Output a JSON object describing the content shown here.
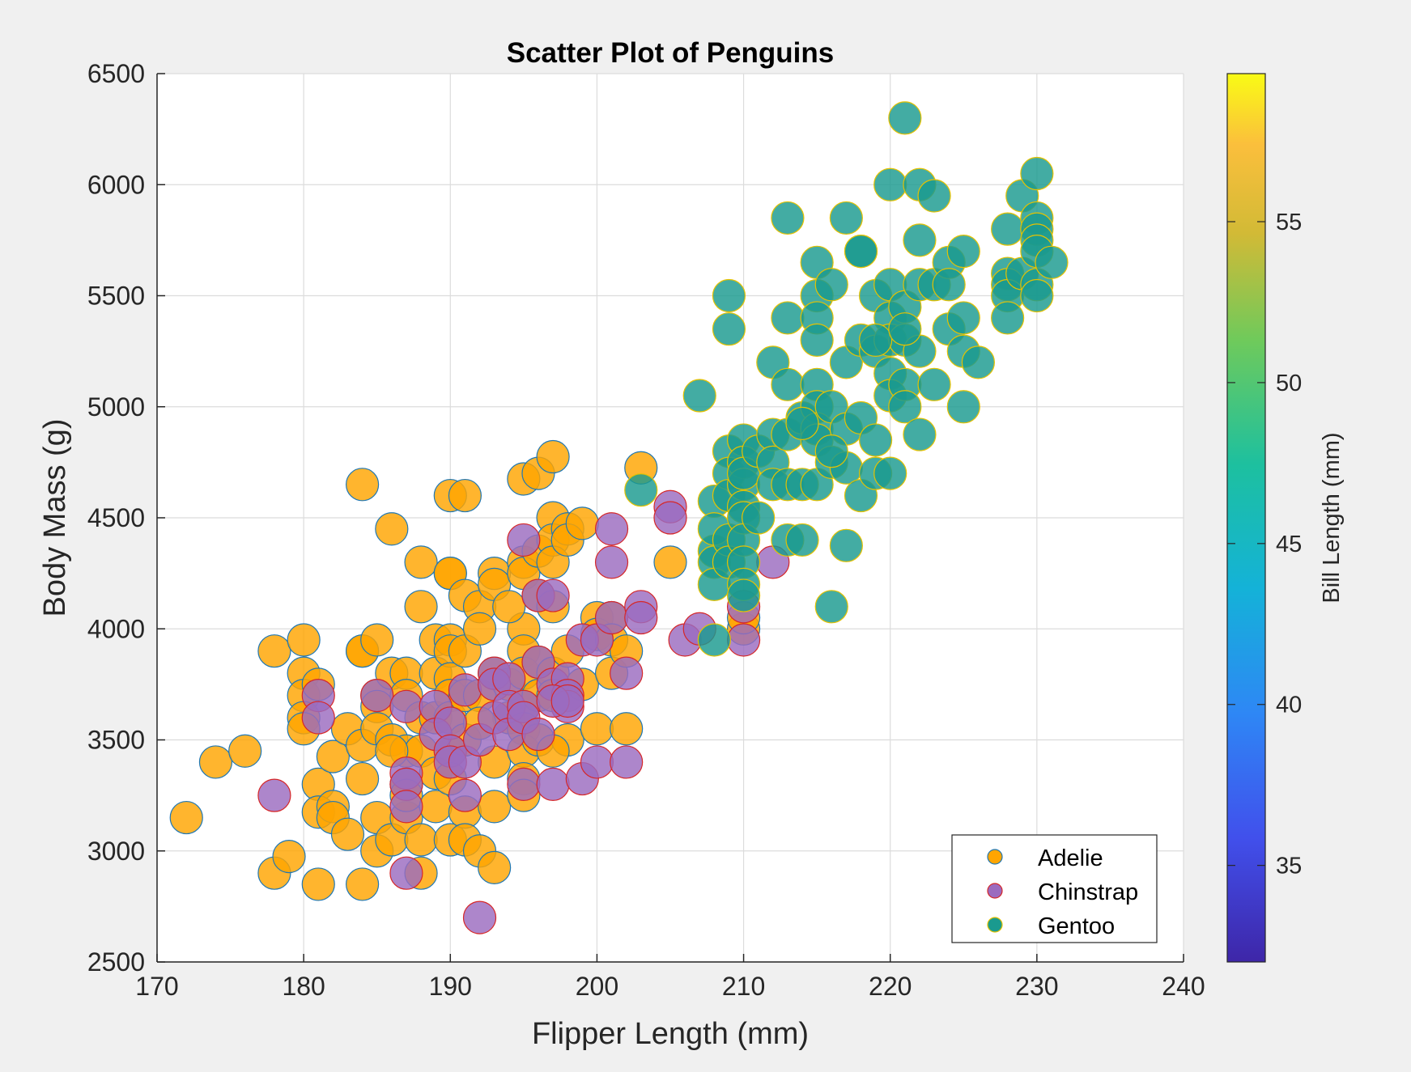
{
  "chart_data": {
    "type": "scatter",
    "title": "Scatter Plot of Penguins",
    "xlabel": "Flipper Length (mm)",
    "ylabel": "Body Mass (g)",
    "xlim": [
      170,
      240
    ],
    "ylim": [
      2500,
      6500
    ],
    "xticks": [
      170,
      180,
      190,
      200,
      210,
      220,
      230,
      240
    ],
    "yticks": [
      2500,
      3000,
      3500,
      4000,
      4500,
      5000,
      5500,
      6000,
      6500
    ],
    "grid": true,
    "legend_position": "bottom-right",
    "colorbar": {
      "label": "Bill Length (mm)",
      "range": [
        32,
        59.6
      ],
      "ticks": [
        35,
        40,
        45,
        50,
        55
      ],
      "colormap": "parula"
    },
    "series": [
      {
        "name": "Adelie",
        "fill": "#ffa500",
        "edge": "#1f77b4",
        "points": [
          [
            172,
            3150
          ],
          [
            174,
            3400
          ],
          [
            176,
            3450
          ],
          [
            178,
            3900
          ],
          [
            178,
            2900
          ],
          [
            179,
            2975
          ],
          [
            180,
            3950
          ],
          [
            180,
            3800
          ],
          [
            180,
            3700
          ],
          [
            180,
            3600
          ],
          [
            180,
            3550
          ],
          [
            181,
            3300
          ],
          [
            181,
            3175
          ],
          [
            181,
            3750
          ],
          [
            181,
            2850
          ],
          [
            182,
            3200
          ],
          [
            182,
            3425
          ],
          [
            182,
            3150
          ],
          [
            183,
            3075
          ],
          [
            183,
            3550
          ],
          [
            184,
            4650
          ],
          [
            184,
            3900
          ],
          [
            184,
            3900
          ],
          [
            184,
            3475
          ],
          [
            184,
            3325
          ],
          [
            184,
            2850
          ],
          [
            185,
            3700
          ],
          [
            185,
            3650
          ],
          [
            185,
            3950
          ],
          [
            185,
            3550
          ],
          [
            185,
            3150
          ],
          [
            185,
            3000
          ],
          [
            186,
            4450
          ],
          [
            186,
            3800
          ],
          [
            186,
            3500
          ],
          [
            186,
            3050
          ],
          [
            187,
            3800
          ],
          [
            187,
            3700
          ],
          [
            187,
            3450
          ],
          [
            187,
            3300
          ],
          [
            187,
            3150
          ],
          [
            187,
            3250
          ],
          [
            188,
            4300
          ],
          [
            188,
            4100
          ],
          [
            188,
            3600
          ],
          [
            188,
            3450
          ],
          [
            188,
            3050
          ],
          [
            188,
            2900
          ],
          [
            189,
            3950
          ],
          [
            189,
            3800
          ],
          [
            189,
            3600
          ],
          [
            189,
            3350
          ],
          [
            189,
            3200
          ],
          [
            190,
            4600
          ],
          [
            190,
            4250
          ],
          [
            190,
            4250
          ],
          [
            190,
            3950
          ],
          [
            190,
            3900
          ],
          [
            190,
            3775
          ],
          [
            190,
            3700
          ],
          [
            190,
            3600
          ],
          [
            190,
            3450
          ],
          [
            190,
            3325
          ],
          [
            190,
            3050
          ],
          [
            191,
            4600
          ],
          [
            191,
            4150
          ],
          [
            191,
            3900
          ],
          [
            191,
            3700
          ],
          [
            191,
            3500
          ],
          [
            191,
            3175
          ],
          [
            191,
            3050
          ],
          [
            192,
            4100
          ],
          [
            192,
            4000
          ],
          [
            192,
            3700
          ],
          [
            192,
            3000
          ],
          [
            193,
            4250
          ],
          [
            193,
            4200
          ],
          [
            193,
            3800
          ],
          [
            193,
            3400
          ],
          [
            193,
            3200
          ],
          [
            193,
            2925
          ],
          [
            194,
            3750
          ],
          [
            194,
            3600
          ],
          [
            195,
            4675
          ],
          [
            195,
            4300
          ],
          [
            195,
            4250
          ],
          [
            195,
            4000
          ],
          [
            195,
            3900
          ],
          [
            195,
            3800
          ],
          [
            195,
            3650
          ],
          [
            195,
            3550
          ],
          [
            195,
            3450
          ],
          [
            195,
            3325
          ],
          [
            195,
            3250
          ],
          [
            196,
            4700
          ],
          [
            196,
            4350
          ],
          [
            196,
            4150
          ],
          [
            196,
            3850
          ],
          [
            196,
            3700
          ],
          [
            196,
            3500
          ],
          [
            197,
            4775
          ],
          [
            197,
            4500
          ],
          [
            197,
            4400
          ],
          [
            197,
            4300
          ],
          [
            197,
            4100
          ],
          [
            197,
            3800
          ],
          [
            197,
            3700
          ],
          [
            198,
            4450
          ],
          [
            198,
            4400
          ],
          [
            198,
            3900
          ],
          [
            198,
            3500
          ],
          [
            199,
            4475
          ],
          [
            199,
            3750
          ],
          [
            200,
            4050
          ],
          [
            200,
            3975
          ],
          [
            200,
            3550
          ],
          [
            201,
            4050
          ],
          [
            201,
            3950
          ],
          [
            201,
            3800
          ],
          [
            202,
            3900
          ],
          [
            202,
            3550
          ],
          [
            203,
            4725
          ],
          [
            205,
            4300
          ],
          [
            210,
            4000
          ],
          [
            210,
            4050
          ],
          [
            186,
            3450
          ],
          [
            192,
            3575
          ],
          [
            194,
            4100
          ],
          [
            197,
            3450
          ]
        ]
      },
      {
        "name": "Chinstrap",
        "fill": "#9b6bbf",
        "edge": "#d62728",
        "points": [
          [
            178,
            3250
          ],
          [
            181,
            3700
          ],
          [
            181,
            3600
          ],
          [
            185,
            3700
          ],
          [
            187,
            2900
          ],
          [
            187,
            3650
          ],
          [
            187,
            3350
          ],
          [
            187,
            3300
          ],
          [
            187,
            3200
          ],
          [
            189,
            3650
          ],
          [
            189,
            3525
          ],
          [
            190,
            3575
          ],
          [
            190,
            3450
          ],
          [
            190,
            3400
          ],
          [
            191,
            3725
          ],
          [
            191,
            3400
          ],
          [
            191,
            3250
          ],
          [
            192,
            2700
          ],
          [
            192,
            3500
          ],
          [
            193,
            3800
          ],
          [
            193,
            3750
          ],
          [
            193,
            3600
          ],
          [
            194,
            3775
          ],
          [
            194,
            3650
          ],
          [
            194,
            3525
          ],
          [
            195,
            4400
          ],
          [
            195,
            3650
          ],
          [
            195,
            3600
          ],
          [
            195,
            3300
          ],
          [
            196,
            4150
          ],
          [
            196,
            3850
          ],
          [
            196,
            3525
          ],
          [
            197,
            4150
          ],
          [
            197,
            3750
          ],
          [
            197,
            3300
          ],
          [
            198,
            3775
          ],
          [
            198,
            3700
          ],
          [
            198,
            3650
          ],
          [
            199,
            3950
          ],
          [
            199,
            3325
          ],
          [
            200,
            3950
          ],
          [
            200,
            3400
          ],
          [
            201,
            4450
          ],
          [
            201,
            4300
          ],
          [
            201,
            4050
          ],
          [
            202,
            3800
          ],
          [
            202,
            3400
          ],
          [
            203,
            4100
          ],
          [
            203,
            4050
          ],
          [
            205,
            4550
          ],
          [
            205,
            4500
          ],
          [
            206,
            3950
          ],
          [
            207,
            4000
          ],
          [
            210,
            4100
          ],
          [
            210,
            3950
          ],
          [
            212,
            4300
          ],
          [
            197,
            3675
          ],
          [
            198,
            3675
          ]
        ]
      },
      {
        "name": "Gentoo",
        "fill": "#1a9a8f",
        "edge": "#e6c200",
        "points": [
          [
            203,
            4625
          ],
          [
            207,
            5050
          ],
          [
            208,
            4350
          ],
          [
            208,
            4300
          ],
          [
            208,
            4200
          ],
          [
            208,
            3950
          ],
          [
            208,
            4575
          ],
          [
            208,
            4450
          ],
          [
            209,
            5500
          ],
          [
            209,
            5350
          ],
          [
            209,
            4800
          ],
          [
            209,
            4700
          ],
          [
            209,
            4600
          ],
          [
            209,
            4400
          ],
          [
            209,
            4300
          ],
          [
            210,
            4850
          ],
          [
            210,
            4750
          ],
          [
            210,
            4650
          ],
          [
            210,
            4550
          ],
          [
            210,
            4500
          ],
          [
            210,
            4400
          ],
          [
            210,
            4300
          ],
          [
            210,
            4200
          ],
          [
            210,
            4150
          ],
          [
            210,
            4700
          ],
          [
            211,
            4800
          ],
          [
            211,
            4500
          ],
          [
            212,
            5200
          ],
          [
            212,
            4875
          ],
          [
            212,
            4750
          ],
          [
            212,
            4650
          ],
          [
            213,
            5850
          ],
          [
            213,
            5400
          ],
          [
            213,
            5100
          ],
          [
            213,
            4875
          ],
          [
            213,
            4650
          ],
          [
            213,
            4400
          ],
          [
            214,
            4950
          ],
          [
            214,
            4650
          ],
          [
            214,
            4400
          ],
          [
            215,
            5650
          ],
          [
            215,
            5500
          ],
          [
            215,
            5400
          ],
          [
            215,
            5300
          ],
          [
            215,
            5100
          ],
          [
            215,
            5000
          ],
          [
            215,
            4900
          ],
          [
            215,
            4850
          ],
          [
            215,
            4650
          ],
          [
            216,
            5550
          ],
          [
            216,
            5000
          ],
          [
            216,
            4750
          ],
          [
            216,
            4100
          ],
          [
            217,
            5850
          ],
          [
            217,
            5200
          ],
          [
            217,
            4900
          ],
          [
            217,
            4725
          ],
          [
            217,
            4375
          ],
          [
            218,
            5700
          ],
          [
            218,
            5700
          ],
          [
            218,
            5300
          ],
          [
            218,
            4950
          ],
          [
            218,
            4600
          ],
          [
            219,
            5500
          ],
          [
            219,
            5250
          ],
          [
            219,
            4850
          ],
          [
            219,
            4700
          ],
          [
            220,
            6000
          ],
          [
            220,
            5550
          ],
          [
            220,
            5400
          ],
          [
            220,
            5300
          ],
          [
            220,
            5150
          ],
          [
            220,
            5050
          ],
          [
            220,
            4700
          ],
          [
            221,
            6300
          ],
          [
            221,
            5450
          ],
          [
            221,
            5300
          ],
          [
            221,
            5100
          ],
          [
            221,
            5000
          ],
          [
            222,
            6000
          ],
          [
            222,
            5750
          ],
          [
            222,
            5550
          ],
          [
            222,
            5250
          ],
          [
            222,
            4875
          ],
          [
            223,
            5950
          ],
          [
            223,
            5550
          ],
          [
            224,
            5650
          ],
          [
            224,
            5550
          ],
          [
            224,
            5350
          ],
          [
            225,
            5700
          ],
          [
            225,
            5400
          ],
          [
            225,
            5250
          ],
          [
            225,
            5000
          ],
          [
            226,
            5200
          ],
          [
            228,
            5800
          ],
          [
            228,
            5600
          ],
          [
            228,
            5550
          ],
          [
            228,
            5500
          ],
          [
            228,
            5400
          ],
          [
            229,
            5950
          ],
          [
            229,
            5600
          ],
          [
            230,
            6050
          ],
          [
            230,
            5850
          ],
          [
            230,
            5800
          ],
          [
            230,
            5750
          ],
          [
            230,
            5700
          ],
          [
            230,
            5550
          ],
          [
            230,
            5500
          ],
          [
            231,
            5650
          ],
          [
            214,
            4925
          ],
          [
            216,
            4800
          ],
          [
            219,
            5300
          ],
          [
            221,
            5350
          ],
          [
            223,
            5100
          ]
        ]
      }
    ]
  }
}
